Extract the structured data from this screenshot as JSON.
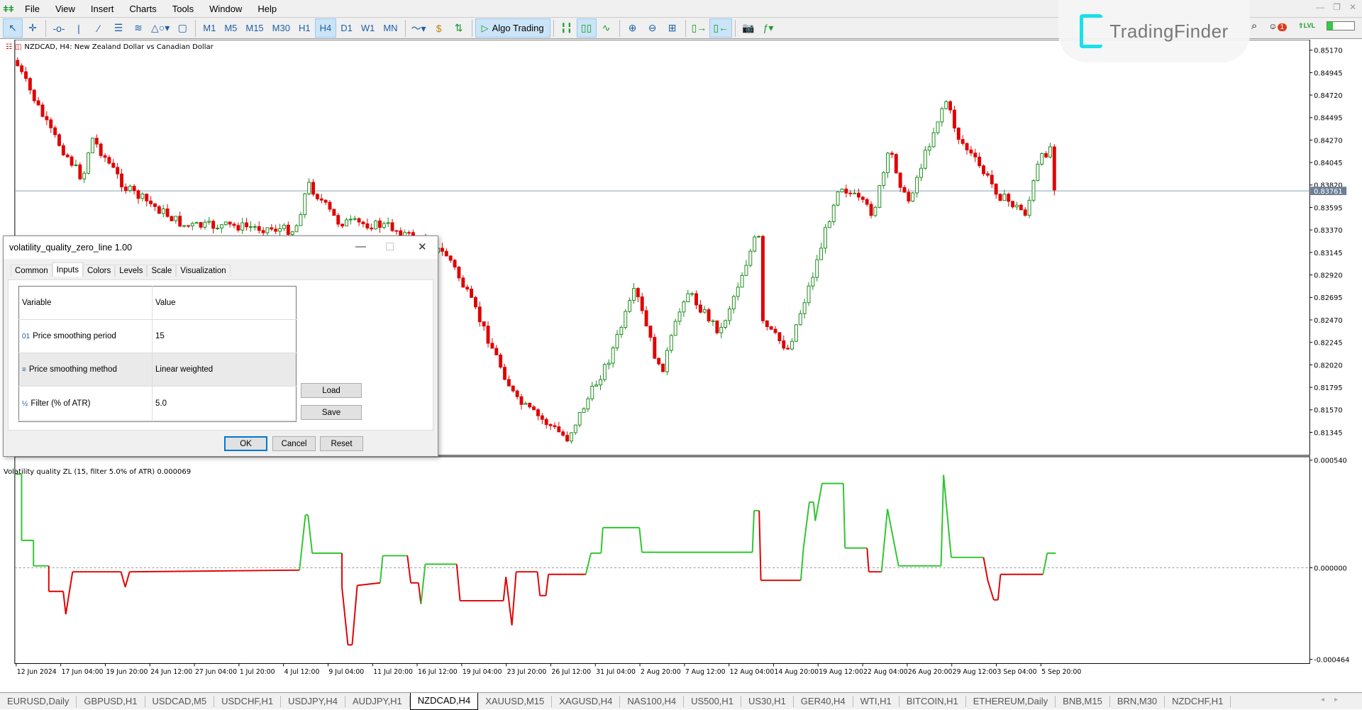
{
  "menu": [
    "File",
    "View",
    "Insert",
    "Charts",
    "Tools",
    "Window",
    "Help"
  ],
  "timeframes": [
    "M1",
    "M5",
    "M15",
    "M30",
    "H1",
    "H4",
    "D1",
    "W1",
    "MN"
  ],
  "active_timeframe": "H4",
  "algo_label": "Algo Trading",
  "watermark": "TradingFinder",
  "notification_count": "1",
  "lvl_label": "LVL",
  "level_progress": 0.2,
  "chart": {
    "title": "NZDCAD, H4:  New Zealand Dollar vs Canadian Dollar",
    "current_price": "0.83761",
    "price_labels": [
      "0.85170",
      "0.84945",
      "0.84720",
      "0.84495",
      "0.84270",
      "0.84045",
      "0.83820",
      "0.83595",
      "0.83370",
      "0.83145",
      "0.82920",
      "0.82695",
      "0.82470",
      "0.82245",
      "0.82020",
      "0.81795",
      "0.81570",
      "0.81345"
    ],
    "bull_color": "#1a8a1a",
    "bear_color": "#e00000"
  },
  "indicator": {
    "title": "Volatility quality ZL (15, filter 5.0% of ATR) 0.000069",
    "axis_labels": [
      "0.000540",
      "0.000000",
      "-0.000464"
    ],
    "up_color": "#2ec52e",
    "down_color": "#e00000"
  },
  "time_labels": [
    "12 Jun 2024",
    "17 Jun 04:00",
    "19 Jun 20:00",
    "24 Jun 12:00",
    "27 Jun 04:00",
    "1 Jul 20:00",
    "4 Jul 12:00",
    "9 Jul 04:00",
    "11 Jul 20:00",
    "16 Jul 12:00",
    "19 Jul 04:00",
    "23 Jul 20:00",
    "26 Jul 12:00",
    "31 Jul 04:00",
    "2 Aug 20:00",
    "7 Aug 12:00",
    "12 Aug 04:00",
    "14 Aug 20:00",
    "19 Aug 12:00",
    "22 Aug 04:00",
    "26 Aug 20:00",
    "29 Aug 12:00",
    "3 Sep 04:00",
    "5 Sep 20:00"
  ],
  "tabs": [
    "EURUSD,Daily",
    "GBPUSD,H1",
    "USDCAD,M5",
    "USDCHF,H1",
    "USDJPY,H4",
    "AUDJPY,H1",
    "NZDCAD,H4",
    "XAUUSD,M15",
    "XAGUSD,H4",
    "NAS100,H4",
    "US500,H1",
    "US30,H1",
    "GER40,H4",
    "WTI,H1",
    "BITCOIN,H1",
    "ETHEREUM,Daily",
    "BNB,M15",
    "BRN,M30",
    "NZDCHF,H1"
  ],
  "active_tab": "NZDCAD,H4",
  "dialog": {
    "title": "volatility_quality_zero_line 1.00",
    "tabs": [
      "Common",
      "Inputs",
      "Colors",
      "Levels",
      "Scale",
      "Visualization"
    ],
    "active_tab": "Inputs",
    "col_variable": "Variable",
    "col_value": "Value",
    "rows": [
      {
        "icon": "01",
        "variable": "Price smoothing period",
        "value": "15"
      },
      {
        "icon": "≡",
        "variable": "Price smoothing method",
        "value": "Linear weighted"
      },
      {
        "icon": "½",
        "variable": "Filter (% of ATR)",
        "value": "5.0"
      }
    ],
    "load": "Load",
    "save": "Save",
    "ok": "OK",
    "cancel": "Cancel",
    "reset": "Reset"
  }
}
